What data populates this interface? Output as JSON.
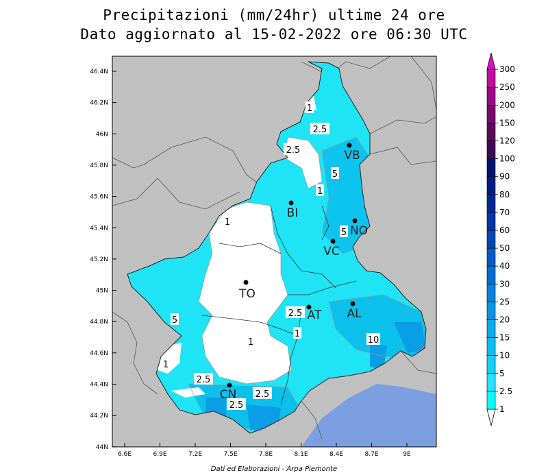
{
  "title_line1": "Precipitazioni (mm/24hr) ultime 24 ore",
  "title_line2": "Dato aggiornato al 15-02-2022 ore 06:30 UTC",
  "footer": "Dati ed Elaborazioni - Arpa Piemonte",
  "lat_labels": [
    "46.4N",
    "46.2N",
    "46N",
    "45.8N",
    "45.6N",
    "45.4N",
    "45.2N",
    "45N",
    "44.8N",
    "44.6N",
    "44.4N",
    "44.2N",
    "44N"
  ],
  "lon_labels": [
    "6.6E",
    "6.9E",
    "7.2E",
    "7.5E",
    "7.8E",
    "8.1E",
    "8.4E",
    "8.7E",
    "9E"
  ],
  "legend": {
    "levels": [
      "1",
      "2.5",
      "5",
      "10",
      "15",
      "20",
      "25",
      "30",
      "40",
      "50",
      "60",
      "70",
      "80",
      "90",
      "100",
      "120",
      "150",
      "200",
      "250",
      "300"
    ],
    "colors": [
      "#00ffff",
      "#22e6ff",
      "#14d2f5",
      "#0cbef0",
      "#0aaaeb",
      "#0896e4",
      "#0682dc",
      "#056ed2",
      "#055ac6",
      "#0546b8",
      "#0434a8",
      "#032896",
      "#021e82",
      "#02146c",
      "#3c0858",
      "#5a0a5a",
      "#780a6e",
      "#9b0a86",
      "#c00ca0",
      "#e010c8"
    ]
  },
  "cities": [
    "VB",
    "BI",
    "NO",
    "VC",
    "TO",
    "AT",
    "AL",
    "CN"
  ],
  "contour_labels": [
    "1",
    "2.5",
    "2.5",
    "5",
    "1",
    "1",
    "5",
    "5",
    "2.5",
    "1",
    "1",
    "10",
    "1",
    "2.5",
    "2.5",
    "2.5"
  ]
}
